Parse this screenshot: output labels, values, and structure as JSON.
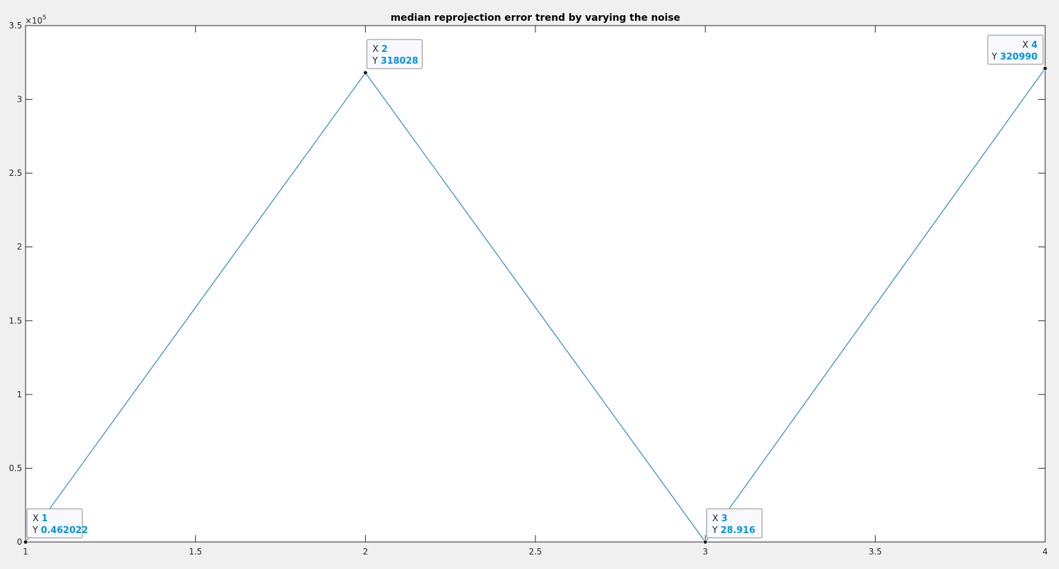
{
  "chart_data": {
    "type": "line",
    "title": "median reprojection error trend by varying the noise",
    "xlabel": "",
    "ylabel": "",
    "x": [
      1,
      2,
      3,
      4
    ],
    "series": [
      {
        "values": [
          0.462022,
          318028,
          28.916,
          320990
        ]
      }
    ],
    "xlim": [
      1,
      4
    ],
    "ylim": [
      0,
      350000
    ],
    "x_ticks": [
      1,
      1.5,
      2,
      2.5,
      3,
      3.5,
      4
    ],
    "x_tick_labels": [
      "1",
      "1.5",
      "2",
      "2.5",
      "3",
      "3.5",
      "4"
    ],
    "y_ticks": [
      0,
      50000,
      100000,
      150000,
      200000,
      250000,
      300000,
      350000
    ],
    "y_tick_labels": [
      "0",
      "0.5",
      "1",
      "1.5",
      "2",
      "2.5",
      "3",
      "3.5"
    ],
    "y_exponent_base": "×10",
    "y_exponent": "5",
    "grid": false,
    "line_color": "#0072bd",
    "datatips": [
      {
        "x_key": "X",
        "x_value": "1",
        "y_key": "Y",
        "y_value": "0.462022"
      },
      {
        "x_key": "X",
        "x_value": "2",
        "y_key": "Y",
        "y_value": "318028"
      },
      {
        "x_key": "X",
        "x_value": "3",
        "y_key": "Y",
        "y_value": "28.916"
      },
      {
        "x_key": "X",
        "x_value": "4",
        "y_key": "Y",
        "y_value": "320990"
      }
    ]
  }
}
